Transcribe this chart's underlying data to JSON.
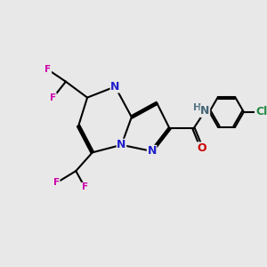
{
  "background_color": "#e8e8e8",
  "bond_color": "#000000",
  "atom_colors": {
    "N": "#2020cc",
    "O": "#cc0000",
    "F": "#cc00aa",
    "Cl": "#228844",
    "H": "#557788",
    "C": "#000000"
  },
  "font_size_atoms": 9,
  "font_size_small": 7.5
}
